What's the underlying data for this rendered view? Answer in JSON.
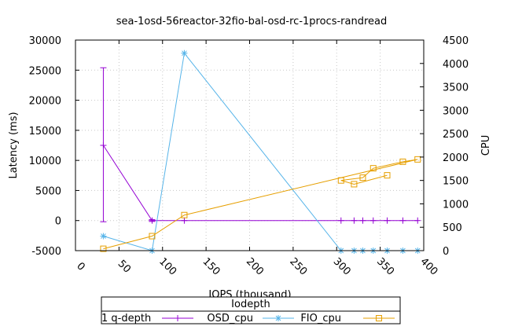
{
  "chart_data": {
    "type": "line",
    "title": "sea-1osd-56reactor-32fio-bal-osd-rc-1procs-randread",
    "xlabel": "IOPS (thousand)",
    "ylabel": "Latency (ms)",
    "y2label": "CPU",
    "xlim": [
      0,
      400
    ],
    "ylim": [
      -5000,
      30000
    ],
    "y2lim": [
      0,
      4500
    ],
    "xticks": [
      0,
      50,
      100,
      150,
      200,
      250,
      300,
      350,
      400
    ],
    "yticks": [
      -5000,
      0,
      5000,
      10000,
      15000,
      20000,
      25000,
      30000
    ],
    "y2ticks": [
      0,
      500,
      1000,
      1500,
      2000,
      2500,
      3000,
      3500,
      4000,
      4500
    ],
    "grid": true,
    "legend": {
      "title": "Iodepth",
      "placement": "bottom-center",
      "entries": [
        "1 q-depth",
        "OSD_cpu",
        "FIO_cpu"
      ]
    },
    "series": [
      {
        "name": "1 q-depth",
        "axis": "y",
        "color": "#9400d3",
        "marker": "plus-errorbar",
        "x": [
          32,
          88,
          125,
          305,
          320,
          330,
          342,
          358,
          376,
          393
        ],
        "y": [
          12500,
          0,
          0,
          0,
          0,
          0,
          0,
          0,
          0,
          0
        ],
        "yerr_low": [
          -200,
          -150,
          -50,
          0,
          0,
          0,
          0,
          0,
          0,
          0
        ],
        "yerr_high": [
          25400,
          150,
          50,
          0,
          0,
          0,
          0,
          0,
          0,
          0
        ]
      },
      {
        "name": "OSD_cpu",
        "axis": "y2",
        "color": "#56b4e9",
        "marker": "star",
        "x": [
          32,
          88,
          125,
          305,
          320,
          330,
          342,
          358,
          376,
          393
        ],
        "y": [
          310,
          0,
          4220,
          0,
          0,
          0,
          0,
          0,
          0,
          0
        ]
      },
      {
        "name": "FIO_cpu",
        "axis": "y2",
        "color": "#e69f00",
        "marker": "square",
        "x": [
          32,
          88,
          125,
          393,
          376,
          342,
          330,
          305,
          320,
          358
        ],
        "y": [
          40,
          310,
          760,
          1950,
          1900,
          1760,
          1560,
          1500,
          1420,
          1610
        ]
      }
    ]
  }
}
